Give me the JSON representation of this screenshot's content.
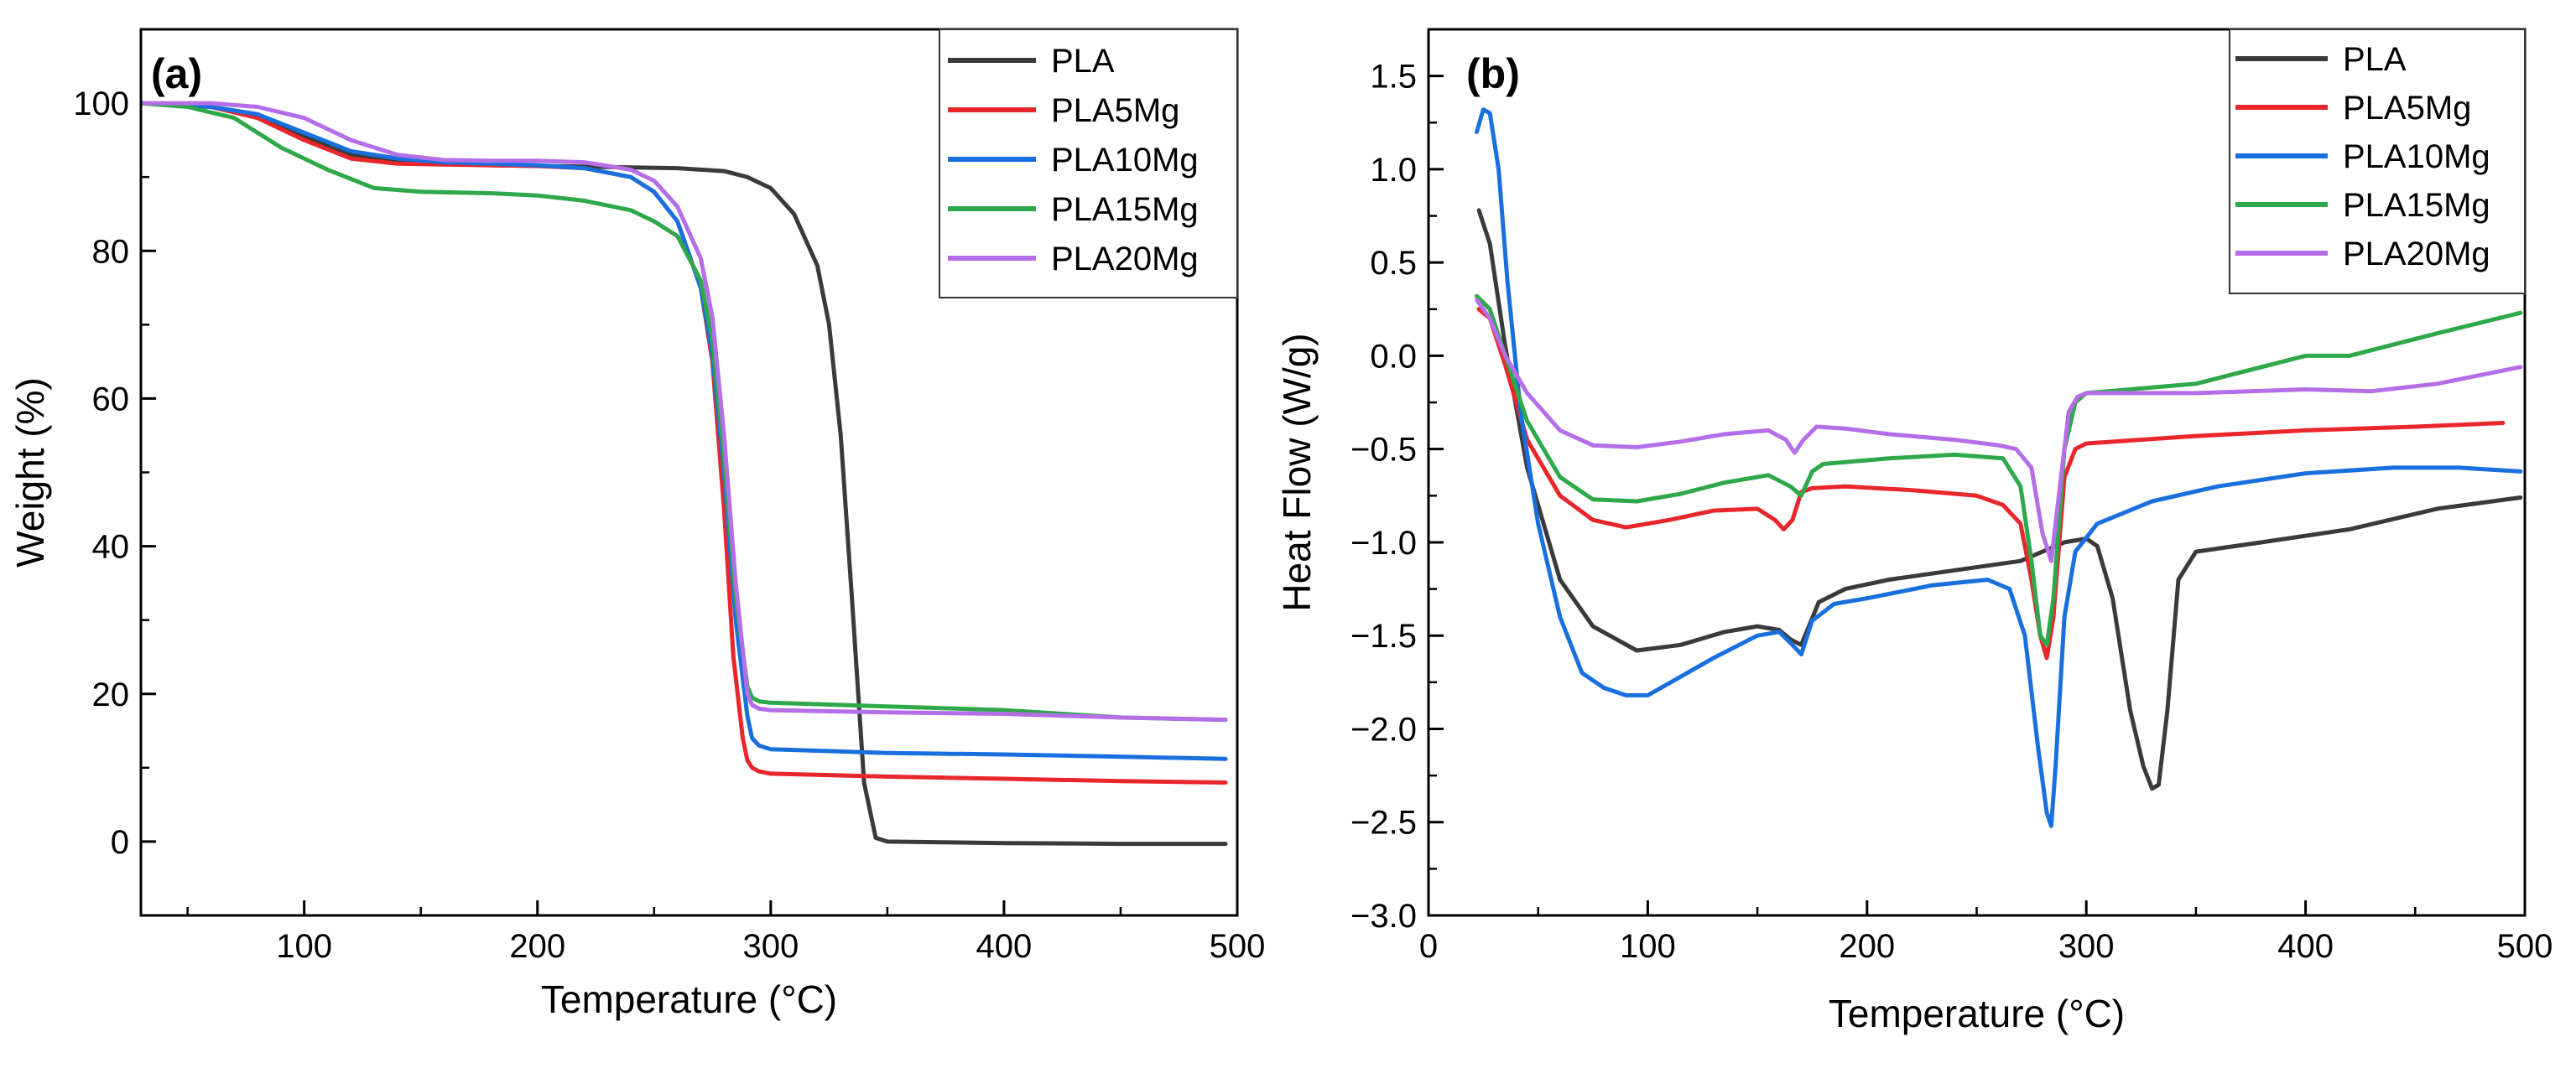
{
  "chart_data": [
    {
      "panel": "(a)",
      "type": "line",
      "xlabel": "Temperature (°C)",
      "ylabel": "Weight (%)",
      "xlim": [
        30,
        500
      ],
      "ylim": [
        -10,
        110
      ],
      "xticks": [
        100,
        200,
        300,
        400,
        500
      ],
      "yticks": [
        0,
        20,
        40,
        60,
        80,
        100
      ],
      "legend_position": "top-right",
      "series": [
        {
          "name": "PLA",
          "color": "#3a3a3a",
          "x": [
            30,
            60,
            80,
            100,
            120,
            140,
            160,
            180,
            200,
            220,
            240,
            260,
            280,
            290,
            300,
            310,
            320,
            325,
            330,
            335,
            340,
            345,
            350,
            400,
            450,
            495
          ],
          "y": [
            100,
            99.5,
            98.5,
            95.5,
            93,
            92,
            91.8,
            91.6,
            91.5,
            91.4,
            91.3,
            91.2,
            90.8,
            90,
            88.5,
            85,
            78,
            70,
            55,
            32,
            8,
            0.5,
            0,
            -0.2,
            -0.3,
            -0.3
          ]
        },
        {
          "name": "PLA5Mg",
          "color": "#e8262c",
          "x": [
            30,
            60,
            80,
            100,
            120,
            140,
            160,
            180,
            200,
            220,
            240,
            250,
            260,
            270,
            275,
            280,
            284,
            288,
            290,
            292,
            295,
            300,
            350,
            400,
            450,
            495
          ],
          "y": [
            100,
            99.5,
            98,
            95,
            92.5,
            91.8,
            91.7,
            91.6,
            91.5,
            91.2,
            90,
            88,
            84,
            75,
            65,
            45,
            25,
            14,
            11,
            10,
            9.5,
            9.2,
            8.8,
            8.5,
            8.2,
            8
          ]
        },
        {
          "name": "PLA10Mg",
          "color": "#1a6fdf",
          "x": [
            30,
            60,
            80,
            100,
            120,
            140,
            160,
            180,
            200,
            220,
            240,
            250,
            260,
            270,
            275,
            280,
            285,
            290,
            292,
            295,
            300,
            350,
            400,
            450,
            495
          ],
          "y": [
            100,
            99.5,
            98.5,
            96,
            93.5,
            92.5,
            92,
            91.8,
            91.6,
            91.2,
            90,
            88,
            84,
            75,
            66,
            50,
            30,
            17,
            14,
            13,
            12.5,
            12,
            11.8,
            11.5,
            11.2
          ]
        },
        {
          "name": "PLA15Mg",
          "color": "#2ea84a",
          "x": [
            30,
            50,
            70,
            90,
            110,
            130,
            150,
            180,
            200,
            220,
            240,
            250,
            260,
            270,
            275,
            280,
            285,
            290,
            292,
            295,
            300,
            350,
            400,
            450,
            495
          ],
          "y": [
            100,
            99.5,
            98,
            94,
            91,
            88.5,
            88,
            87.8,
            87.5,
            86.8,
            85.5,
            84,
            82,
            76,
            68,
            52,
            33,
            21,
            19.5,
            19,
            18.8,
            18.3,
            17.8,
            16.8,
            16.5
          ]
        },
        {
          "name": "PLA20Mg",
          "color": "#b46ee8",
          "x": [
            30,
            60,
            80,
            100,
            120,
            140,
            160,
            180,
            200,
            220,
            240,
            250,
            260,
            270,
            275,
            280,
            285,
            290,
            292,
            295,
            300,
            350,
            400,
            450,
            495
          ],
          "y": [
            100,
            100,
            99.5,
            98,
            95,
            93,
            92.3,
            92.2,
            92.2,
            92,
            91,
            89.5,
            86,
            79,
            71,
            55,
            35,
            20,
            18.5,
            18,
            17.8,
            17.5,
            17.3,
            16.8,
            16.5
          ]
        }
      ],
      "legend": [
        "PLA",
        "PLA5Mg",
        "PLA10Mg",
        "PLA15Mg",
        "PLA20Mg"
      ]
    },
    {
      "panel": "(b)",
      "type": "line",
      "xlabel": "Temperature (°C)",
      "ylabel": "Heat Flow (W/g)",
      "xlim": [
        0,
        500
      ],
      "ylim": [
        -3.0,
        1.75
      ],
      "xticks": [
        0,
        100,
        200,
        300,
        400,
        500
      ],
      "xtick_labels": [
        "0",
        "100",
        "200",
        "300",
        "400",
        "500"
      ],
      "yticks": [
        -3.0,
        -2.5,
        -2.0,
        -1.5,
        -1.0,
        -0.5,
        0.0,
        0.5,
        1.0,
        1.5
      ],
      "ytick_labels": [
        "−3.0",
        "−2.5",
        "−2.0",
        "−1.5",
        "−1.0",
        "−0.5",
        "0.0",
        "0.5",
        "1.0",
        "1.5"
      ],
      "legend_position": "top-right",
      "series": [
        {
          "name": "PLA",
          "color": "#3a3a3a",
          "x": [
            23,
            28,
            35,
            45,
            60,
            75,
            95,
            115,
            135,
            150,
            160,
            165,
            170,
            178,
            190,
            210,
            240,
            270,
            290,
            300,
            305,
            312,
            320,
            326,
            330,
            333,
            337,
            342,
            350,
            380,
            420,
            460,
            498
          ],
          "y": [
            0.78,
            0.6,
            0.05,
            -0.6,
            -1.2,
            -1.45,
            -1.58,
            -1.55,
            -1.48,
            -1.45,
            -1.47,
            -1.52,
            -1.55,
            -1.32,
            -1.25,
            -1.2,
            -1.15,
            -1.1,
            -1.0,
            -0.98,
            -1.02,
            -1.3,
            -1.9,
            -2.2,
            -2.32,
            -2.3,
            -1.9,
            -1.2,
            -1.05,
            -1.0,
            -0.93,
            -0.82,
            -0.76
          ]
        },
        {
          "name": "PLA5Mg",
          "color": "#e8262c",
          "x": [
            23,
            28,
            35,
            45,
            60,
            75,
            90,
            110,
            130,
            150,
            158,
            162,
            166,
            170,
            175,
            190,
            220,
            250,
            262,
            270,
            275,
            279,
            282,
            285,
            290,
            295,
            300,
            350,
            400,
            450,
            490
          ],
          "y": [
            0.25,
            0.2,
            -0.05,
            -0.45,
            -0.75,
            -0.88,
            -0.92,
            -0.88,
            -0.83,
            -0.82,
            -0.88,
            -0.93,
            -0.88,
            -0.73,
            -0.71,
            -0.7,
            -0.72,
            -0.75,
            -0.8,
            -0.9,
            -1.2,
            -1.5,
            -1.62,
            -1.4,
            -0.65,
            -0.5,
            -0.47,
            -0.43,
            -0.4,
            -0.38,
            -0.36
          ]
        },
        {
          "name": "PLA10Mg",
          "color": "#1a6fdf",
          "x": [
            22,
            25,
            28,
            32,
            36,
            42,
            50,
            60,
            70,
            80,
            90,
            100,
            115,
            130,
            150,
            160,
            166,
            170,
            175,
            185,
            200,
            230,
            255,
            265,
            272,
            278,
            282,
            284,
            286,
            290,
            295,
            305,
            330,
            360,
            400,
            440,
            470,
            498
          ],
          "y": [
            1.2,
            1.32,
            1.3,
            1.0,
            0.4,
            -0.3,
            -0.9,
            -1.4,
            -1.7,
            -1.78,
            -1.82,
            -1.82,
            -1.72,
            -1.62,
            -1.5,
            -1.48,
            -1.55,
            -1.6,
            -1.42,
            -1.33,
            -1.3,
            -1.23,
            -1.2,
            -1.25,
            -1.5,
            -2.1,
            -2.45,
            -2.52,
            -2.2,
            -1.4,
            -1.05,
            -0.9,
            -0.78,
            -0.7,
            -0.63,
            -0.6,
            -0.6,
            -0.62
          ]
        },
        {
          "name": "PLA15Mg",
          "color": "#2ea84a",
          "x": [
            22,
            28,
            35,
            45,
            60,
            75,
            95,
            115,
            135,
            155,
            165,
            170,
            175,
            180,
            190,
            210,
            240,
            262,
            270,
            275,
            279,
            282,
            285,
            290,
            295,
            300,
            350,
            400,
            420,
            460,
            498
          ],
          "y": [
            0.32,
            0.25,
            0.0,
            -0.35,
            -0.65,
            -0.77,
            -0.78,
            -0.74,
            -0.68,
            -0.64,
            -0.7,
            -0.75,
            -0.62,
            -0.58,
            -0.57,
            -0.55,
            -0.53,
            -0.55,
            -0.7,
            -1.1,
            -1.5,
            -1.55,
            -1.3,
            -0.5,
            -0.25,
            -0.2,
            -0.15,
            0.0,
            0.0,
            0.12,
            0.23
          ]
        },
        {
          "name": "PLA20Mg",
          "color": "#b46ee8",
          "x": [
            22,
            28,
            35,
            45,
            60,
            75,
            95,
            115,
            135,
            155,
            163,
            167,
            171,
            177,
            190,
            210,
            240,
            260,
            268,
            275,
            280,
            284,
            288,
            292,
            296,
            300,
            350,
            400,
            430,
            460,
            498
          ],
          "y": [
            0.3,
            0.2,
            0.0,
            -0.2,
            -0.4,
            -0.48,
            -0.49,
            -0.46,
            -0.42,
            -0.4,
            -0.45,
            -0.52,
            -0.45,
            -0.38,
            -0.39,
            -0.42,
            -0.45,
            -0.48,
            -0.5,
            -0.6,
            -0.95,
            -1.1,
            -0.7,
            -0.3,
            -0.22,
            -0.2,
            -0.2,
            -0.18,
            -0.19,
            -0.15,
            -0.06
          ]
        }
      ],
      "legend": [
        "PLA",
        "PLA5Mg",
        "PLA10Mg",
        "PLA15Mg",
        "PLA20Mg"
      ]
    }
  ]
}
